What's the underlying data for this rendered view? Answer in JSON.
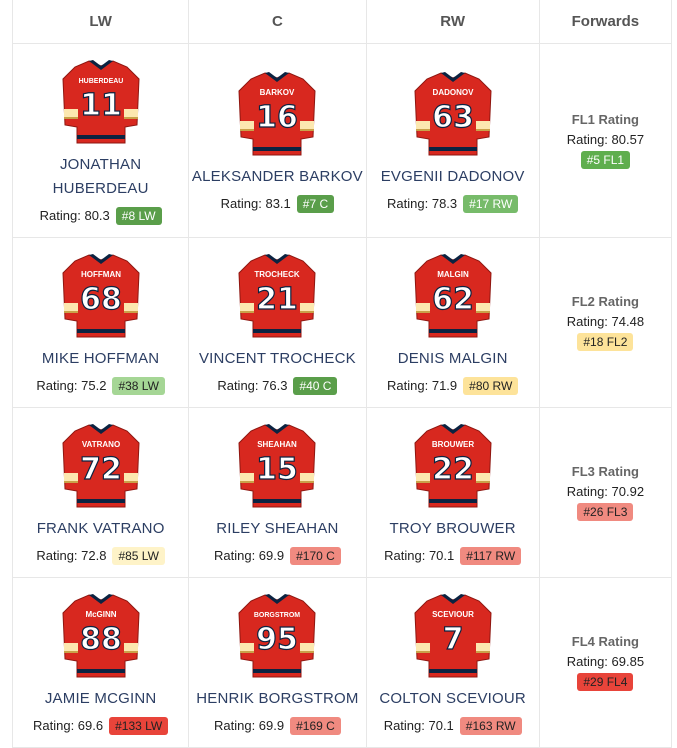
{
  "headers": [
    "LW",
    "C",
    "RW",
    "Forwards"
  ],
  "rows": [
    {
      "players": [
        {
          "jersey_name": "HUBERDEAU",
          "number": "11",
          "name": "JONATHAN HUBERDEAU",
          "rating": "Rating: 80.3",
          "badge": "#8 LW",
          "badge_bg": "#5a9e4a",
          "badge_fg": "#ffffff"
        },
        {
          "jersey_name": "BARKOV",
          "number": "16",
          "name": "ALEKSANDER BARKOV",
          "rating": "Rating: 83.1",
          "badge": "#7 C",
          "badge_bg": "#5a9e4a",
          "badge_fg": "#ffffff"
        },
        {
          "jersey_name": "DADONOV",
          "number": "63",
          "name": "EVGENII DADONOV",
          "rating": "Rating: 78.3",
          "badge": "#17 RW",
          "badge_bg": "#77bb6a",
          "badge_fg": "#ffffff"
        }
      ],
      "line": {
        "title": "FL1 Rating",
        "rating": "Rating: 80.57",
        "badge": "#5 FL1",
        "badge_bg": "#5fae4e",
        "badge_fg": "#ffffff"
      }
    },
    {
      "players": [
        {
          "jersey_name": "HOFFMAN",
          "number": "68",
          "name": "MIKE HOFFMAN",
          "rating": "Rating: 75.2",
          "badge": "#38 LW",
          "badge_bg": "#a5d695",
          "badge_fg": "#222222"
        },
        {
          "jersey_name": "TROCHECK",
          "number": "21",
          "name": "VINCENT TROCHECK",
          "rating": "Rating: 76.3",
          "badge": "#40 C",
          "badge_bg": "#5a9e4a",
          "badge_fg": "#ffffff"
        },
        {
          "jersey_name": "MALGIN",
          "number": "62",
          "name": "DENIS MALGIN",
          "rating": "Rating: 71.9",
          "badge": "#80 RW",
          "badge_bg": "#fde39a",
          "badge_fg": "#222222"
        }
      ],
      "line": {
        "title": "FL2 Rating",
        "rating": "Rating: 74.48",
        "badge": "#18 FL2",
        "badge_bg": "#fde39a",
        "badge_fg": "#222222"
      }
    },
    {
      "players": [
        {
          "jersey_name": "VATRANO",
          "number": "72",
          "name": "FRANK VATRANO",
          "rating": "Rating: 72.8",
          "badge": "#85 LW",
          "badge_bg": "#fef3c8",
          "badge_fg": "#222222"
        },
        {
          "jersey_name": "SHEAHAN",
          "number": "15",
          "name": "RILEY SHEAHAN",
          "rating": "Rating: 69.9",
          "badge": "#170 C",
          "badge_bg": "#f08a80",
          "badge_fg": "#222222"
        },
        {
          "jersey_name": "BROUWER",
          "number": "22",
          "name": "TROY BROUWER",
          "rating": "Rating: 70.1",
          "badge": "#117 RW",
          "badge_bg": "#f08a80",
          "badge_fg": "#222222"
        }
      ],
      "line": {
        "title": "FL3 Rating",
        "rating": "Rating: 70.92",
        "badge": "#26 FL3",
        "badge_bg": "#f08a80",
        "badge_fg": "#222222"
      }
    },
    {
      "players": [
        {
          "jersey_name": "McGINN",
          "number": "88",
          "name": "JAMIE MCGINN",
          "rating": "Rating: 69.6",
          "badge": "#133 LW",
          "badge_bg": "#e8443a",
          "badge_fg": "#222222"
        },
        {
          "jersey_name": "BORGSTROM",
          "number": "95",
          "name": "HENRIK BORGSTROM",
          "rating": "Rating: 69.9",
          "badge": "#169 C",
          "badge_bg": "#f08a80",
          "badge_fg": "#222222"
        },
        {
          "jersey_name": "SCEVIOUR",
          "number": "7",
          "name": "COLTON SCEVIOUR",
          "rating": "Rating: 70.1",
          "badge": "#163 RW",
          "badge_bg": "#f08a80",
          "badge_fg": "#222222"
        }
      ],
      "line": {
        "title": "FL4 Rating",
        "rating": "Rating: 69.85",
        "badge": "#29 FL4",
        "badge_bg": "#e8443a",
        "badge_fg": "#222222"
      }
    }
  ],
  "colors": {
    "jersey_red": "#d8281f",
    "jersey_stripe": "#fce8b0",
    "jersey_gold": "#c9a24a",
    "jersey_navy": "#0b2341"
  }
}
